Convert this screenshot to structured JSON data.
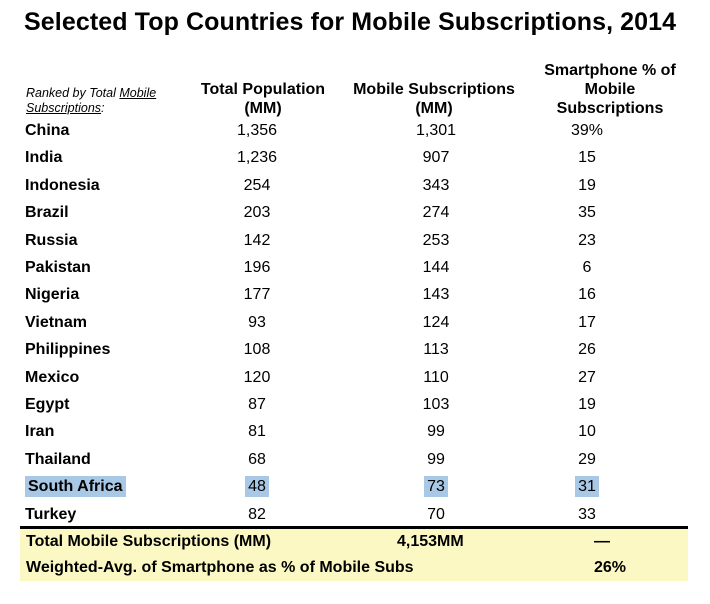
{
  "chart_data": {
    "type": "table",
    "title": "Selected Top Countries for Mobile Subscriptions, 2014",
    "rank_note": "Ranked by Total Mobile Subscriptions:",
    "columns": [
      "Total Population (MM)",
      "Mobile Subscriptions (MM)",
      "Smartphone % of Mobile Subscriptions"
    ],
    "rows": [
      {
        "country": "China",
        "population": "1,356",
        "subscriptions": "1,301",
        "smartphone_pct": "39%"
      },
      {
        "country": "India",
        "population": "1,236",
        "subscriptions": "907",
        "smartphone_pct": "15"
      },
      {
        "country": "Indonesia",
        "population": "254",
        "subscriptions": "343",
        "smartphone_pct": "19"
      },
      {
        "country": "Brazil",
        "population": "203",
        "subscriptions": "274",
        "smartphone_pct": "35"
      },
      {
        "country": "Russia",
        "population": "142",
        "subscriptions": "253",
        "smartphone_pct": "23"
      },
      {
        "country": "Pakistan",
        "population": "196",
        "subscriptions": "144",
        "smartphone_pct": "6"
      },
      {
        "country": "Nigeria",
        "population": "177",
        "subscriptions": "143",
        "smartphone_pct": "16"
      },
      {
        "country": "Vietnam",
        "population": "93",
        "subscriptions": "124",
        "smartphone_pct": "17"
      },
      {
        "country": "Philippines",
        "population": "108",
        "subscriptions": "113",
        "smartphone_pct": "26"
      },
      {
        "country": "Mexico",
        "population": "120",
        "subscriptions": "110",
        "smartphone_pct": "27"
      },
      {
        "country": "Egypt",
        "population": "87",
        "subscriptions": "103",
        "smartphone_pct": "19"
      },
      {
        "country": "Iran",
        "population": "81",
        "subscriptions": "99",
        "smartphone_pct": "10"
      },
      {
        "country": "Thailand",
        "population": "68",
        "subscriptions": "99",
        "smartphone_pct": "29"
      },
      {
        "country": "South Africa",
        "population": "48",
        "subscriptions": "73",
        "smartphone_pct": "31",
        "highlighted": true
      },
      {
        "country": "Turkey",
        "population": "82",
        "subscriptions": "70",
        "smartphone_pct": "33"
      }
    ],
    "summary": [
      {
        "label": "Total Mobile Subscriptions (MM)",
        "value": "4,153MM"
      },
      {
        "label": "Weighted-Avg. of Smartphone as % of Mobile Subs",
        "value": "26%"
      }
    ],
    "summary_dash": "—",
    "highlight_color": "#a9c8e6",
    "summary_bg_color": "#fbf8c4"
  }
}
